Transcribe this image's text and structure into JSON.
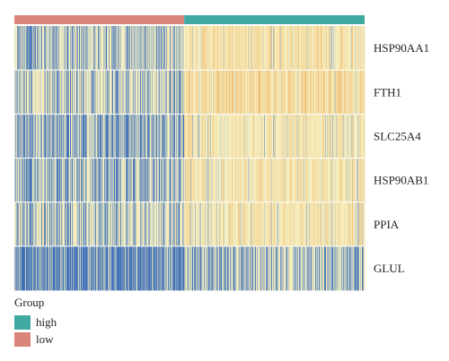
{
  "chart_data": {
    "type": "heatmap",
    "title": "",
    "rows": [
      "HSP90AA1",
      "FTH1",
      "SLC25A4",
      "HSP90AB1",
      "PPIA",
      "GLUL"
    ],
    "column_annotation": {
      "title": "Group",
      "groups": [
        {
          "name": "low",
          "color": "#d9857a",
          "fraction": 0.485
        },
        {
          "name": "high",
          "color": "#3fa9a2",
          "fraction": 0.515
        }
      ]
    },
    "legend": {
      "placement": "bottom-left",
      "title": "Group",
      "entries": [
        {
          "label": "high",
          "color": "#3fa9a2"
        },
        {
          "label": "low",
          "color": "#d9857a"
        }
      ]
    },
    "row_means": {
      "low": [
        -0.55,
        -0.45,
        -0.8,
        -0.7,
        -0.45,
        -1.15
      ],
      "high": [
        0.45,
        0.75,
        0.3,
        0.4,
        0.3,
        -0.55
      ]
    },
    "color_scale": {
      "min": -1.5,
      "mid": 0.0,
      "max": 1.5,
      "colors": [
        "#3e6fb8",
        "#f7f2c4",
        "#f0c27a"
      ]
    }
  }
}
